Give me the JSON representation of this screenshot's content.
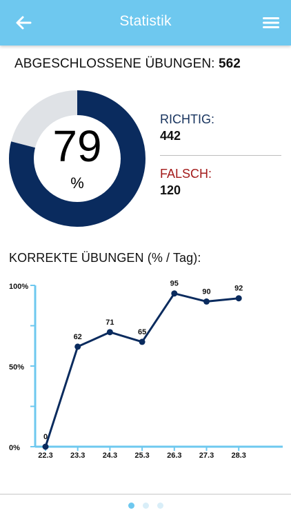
{
  "header": {
    "title": "Statistik",
    "back_icon": "arrow-left-icon",
    "menu_icon": "hamburger-menu-icon",
    "bar_color": "#6ec8ef"
  },
  "summary": {
    "label": "ABGESCHLOSSENE ÜBUNGEN:",
    "count": "562"
  },
  "donut": {
    "percent": 79,
    "value_text": "79",
    "unit": "%",
    "fill_color": "#0a2b5e",
    "rest_color": "#dfe2e6"
  },
  "stats": {
    "correct_label": "RICHTIG:",
    "correct_value": "442",
    "correct_color": "#17335e",
    "wrong_label": "FALSCH:",
    "wrong_value": "120",
    "wrong_color": "#a31a1a"
  },
  "chart_title": "KORREKTE ÜBUNGEN (% / Tag):",
  "chart_data": {
    "type": "line",
    "categories": [
      "22.3",
      "23.3",
      "24.3",
      "25.3",
      "26.3",
      "27.3",
      "28.3"
    ],
    "series": [
      {
        "values": [
          0,
          62,
          71,
          65,
          95,
          90,
          92
        ]
      }
    ],
    "data_labels": [
      "0",
      "62",
      "71",
      "65",
      "95",
      "90",
      "92"
    ],
    "y_ticks": [
      "100%",
      "50%",
      "0%"
    ],
    "ylim": [
      0,
      100
    ],
    "line_color": "#0a2b5e",
    "axis_color": "#6ec8ef"
  },
  "pager": {
    "pages": 3,
    "active": 0
  }
}
